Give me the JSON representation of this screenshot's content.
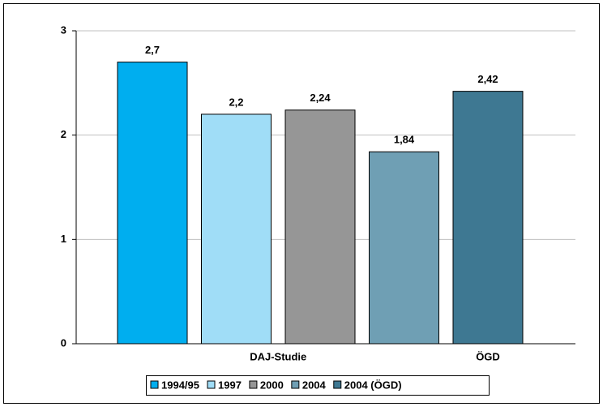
{
  "chart_data": {
    "type": "bar",
    "categories": [
      "DAJ-Studie",
      "ÖGD"
    ],
    "series": [
      {
        "name": "1994/95",
        "color": "#00aeef",
        "values": [
          2.7,
          null
        ],
        "value_labels": [
          "2,7",
          null
        ]
      },
      {
        "name": "1997",
        "color": "#a0ddf7",
        "values": [
          2.2,
          null
        ],
        "value_labels": [
          "2,2",
          null
        ]
      },
      {
        "name": "2000",
        "color": "#969696",
        "values": [
          2.24,
          null
        ],
        "value_labels": [
          "2,24",
          null
        ]
      },
      {
        "name": "2004",
        "color": "#6f9fb4",
        "values": [
          1.84,
          null
        ],
        "value_labels": [
          "1,84",
          null
        ]
      },
      {
        "name": "2004 (ÖGD)",
        "color": "#3e7892",
        "values": [
          null,
          2.42
        ],
        "value_labels": [
          null,
          "2,42"
        ]
      }
    ],
    "ylim": [
      0,
      3
    ],
    "yticks": [
      0,
      1,
      2,
      3
    ],
    "grid": true,
    "legend": "bottom"
  }
}
